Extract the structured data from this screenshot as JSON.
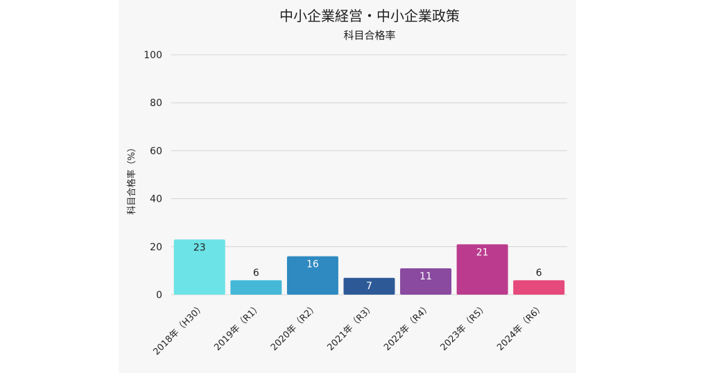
{
  "chart_data": {
    "type": "bar",
    "title": "中小企業経営・中小企業政策",
    "subtitle": "科目合格率",
    "xlabel": "",
    "ylabel": "科目合格率（%）",
    "ylim": [
      0,
      100
    ],
    "yticks": [
      0,
      20,
      40,
      60,
      80,
      100
    ],
    "grid": true,
    "categories": [
      "2018年（H30）",
      "2019年（R1）",
      "2020年（R2）",
      "2021年（R3）",
      "2022年（R4）",
      "2023年（R5）",
      "2024年（R6）"
    ],
    "values": [
      23,
      6,
      16,
      7,
      11,
      21,
      6
    ],
    "data_labels": [
      "23",
      "6",
      "16",
      "7",
      "11",
      "21",
      "6"
    ],
    "colors": [
      "#6ce3e6",
      "#45b8d8",
      "#2e8ac0",
      "#2d5a97",
      "#8a4aa0",
      "#bb3c8e",
      "#e6497b"
    ],
    "label_colors": [
      "#1e1e1e",
      "#1e1e1e",
      "#ffffff",
      "#ffffff",
      "#ffffff",
      "#ffffff",
      "#1e1e1e"
    ]
  }
}
